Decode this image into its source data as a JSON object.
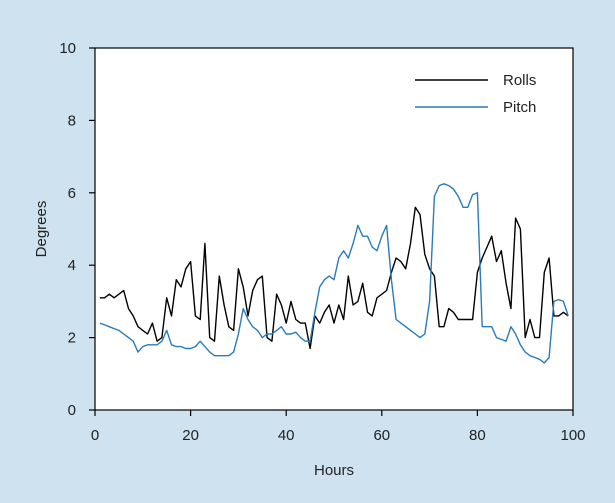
{
  "colors": {
    "background": "#cfe2ef",
    "plot_background": "#ffffff",
    "rolls": "#000000",
    "pitch": "#2a7bb8"
  },
  "chart_data": {
    "type": "line",
    "title": "",
    "xlabel": "Hours",
    "ylabel": "Degrees",
    "xlim": [
      0,
      100
    ],
    "ylim": [
      0,
      10
    ],
    "xticks": [
      "0",
      "20",
      "40",
      "60",
      "80",
      "100"
    ],
    "yticks": [
      "0",
      "2",
      "4",
      "6",
      "8",
      "10"
    ],
    "grid": false,
    "legend_position": "top-right",
    "series": [
      {
        "name": "Rolls",
        "color": "#000000",
        "x": [
          1,
          2,
          3,
          4,
          5,
          6,
          7,
          8,
          9,
          10,
          11,
          12,
          13,
          14,
          15,
          16,
          17,
          18,
          19,
          20,
          21,
          22,
          23,
          24,
          25,
          26,
          27,
          28,
          29,
          30,
          31,
          32,
          33,
          34,
          35,
          36,
          37,
          38,
          39,
          40,
          41,
          42,
          43,
          44,
          45,
          46,
          47,
          48,
          49,
          50,
          51,
          52,
          53,
          54,
          55,
          56,
          57,
          58,
          59,
          60,
          61,
          62,
          63,
          64,
          65,
          66,
          67,
          68,
          69,
          70,
          71,
          72,
          73,
          74,
          75,
          76,
          77,
          78,
          79,
          80,
          81,
          82,
          83,
          84,
          85,
          86,
          87,
          88,
          89,
          90,
          91,
          92,
          93,
          94,
          95,
          96,
          97,
          98,
          99
        ],
        "y": [
          3.1,
          3.1,
          3.2,
          3.1,
          3.2,
          3.3,
          2.8,
          2.6,
          2.3,
          2.2,
          2.1,
          2.4,
          1.9,
          2.0,
          3.1,
          2.6,
          3.6,
          3.4,
          3.9,
          4.1,
          2.6,
          2.5,
          4.6,
          2.0,
          1.9,
          3.7,
          2.9,
          2.3,
          2.2,
          3.9,
          3.4,
          2.6,
          3.3,
          3.6,
          3.7,
          2.0,
          1.9,
          3.2,
          2.9,
          2.4,
          3.0,
          2.5,
          2.4,
          2.4,
          1.7,
          2.6,
          2.4,
          2.7,
          2.9,
          2.4,
          2.9,
          2.5,
          3.7,
          2.9,
          3.0,
          3.5,
          2.7,
          2.6,
          3.1,
          3.2,
          3.3,
          3.8,
          4.2,
          4.1,
          3.9,
          4.6,
          5.6,
          5.4,
          4.3,
          3.9,
          3.7,
          2.3,
          2.3,
          2.8,
          2.7,
          2.5,
          2.5,
          2.5,
          2.5,
          3.8,
          4.2,
          4.5,
          4.8,
          4.1,
          4.4,
          3.5,
          2.8,
          5.3,
          5.0,
          2.0,
          2.5,
          2.0,
          2.0,
          3.8,
          4.2,
          2.6,
          2.6,
          2.7,
          2.6
        ]
      },
      {
        "name": "Pitch",
        "color": "#2a7bb8",
        "x": [
          1,
          2,
          3,
          4,
          5,
          6,
          7,
          8,
          9,
          10,
          11,
          12,
          13,
          14,
          15,
          16,
          17,
          18,
          19,
          20,
          21,
          22,
          23,
          24,
          25,
          26,
          27,
          28,
          29,
          30,
          31,
          32,
          33,
          34,
          35,
          36,
          37,
          38,
          39,
          40,
          41,
          42,
          43,
          44,
          45,
          46,
          47,
          48,
          49,
          50,
          51,
          52,
          53,
          54,
          55,
          56,
          57,
          58,
          59,
          60,
          61,
          62,
          63,
          64,
          65,
          66,
          67,
          68,
          69,
          70,
          71,
          72,
          73,
          74,
          75,
          76,
          77,
          78,
          79,
          80,
          81,
          82,
          83,
          84,
          85,
          86,
          87,
          88,
          89,
          90,
          91,
          92,
          93,
          94,
          95,
          96,
          97,
          98,
          99
        ],
        "y": [
          2.4,
          2.35,
          2.3,
          2.25,
          2.2,
          2.1,
          2.0,
          1.9,
          1.6,
          1.75,
          1.8,
          1.8,
          1.8,
          1.9,
          2.2,
          1.8,
          1.75,
          1.75,
          1.7,
          1.7,
          1.75,
          1.9,
          1.75,
          1.6,
          1.5,
          1.5,
          1.5,
          1.5,
          1.6,
          2.1,
          2.8,
          2.5,
          2.3,
          2.2,
          2.0,
          2.1,
          2.1,
          2.2,
          2.3,
          2.1,
          2.1,
          2.15,
          2.0,
          1.9,
          1.9,
          2.7,
          3.4,
          3.6,
          3.7,
          3.6,
          4.2,
          4.4,
          4.2,
          4.6,
          5.1,
          4.8,
          4.8,
          4.5,
          4.4,
          4.8,
          5.1,
          3.6,
          2.5,
          2.4,
          2.3,
          2.2,
          2.1,
          2.0,
          2.1,
          3.0,
          5.9,
          6.2,
          6.25,
          6.2,
          6.1,
          5.9,
          5.6,
          5.6,
          5.95,
          6.0,
          2.3,
          2.3,
          2.3,
          2.0,
          1.95,
          1.9,
          2.3,
          2.1,
          1.8,
          1.6,
          1.5,
          1.45,
          1.4,
          1.3,
          1.45,
          3.0,
          3.05,
          3.0,
          2.6
        ]
      }
    ]
  }
}
